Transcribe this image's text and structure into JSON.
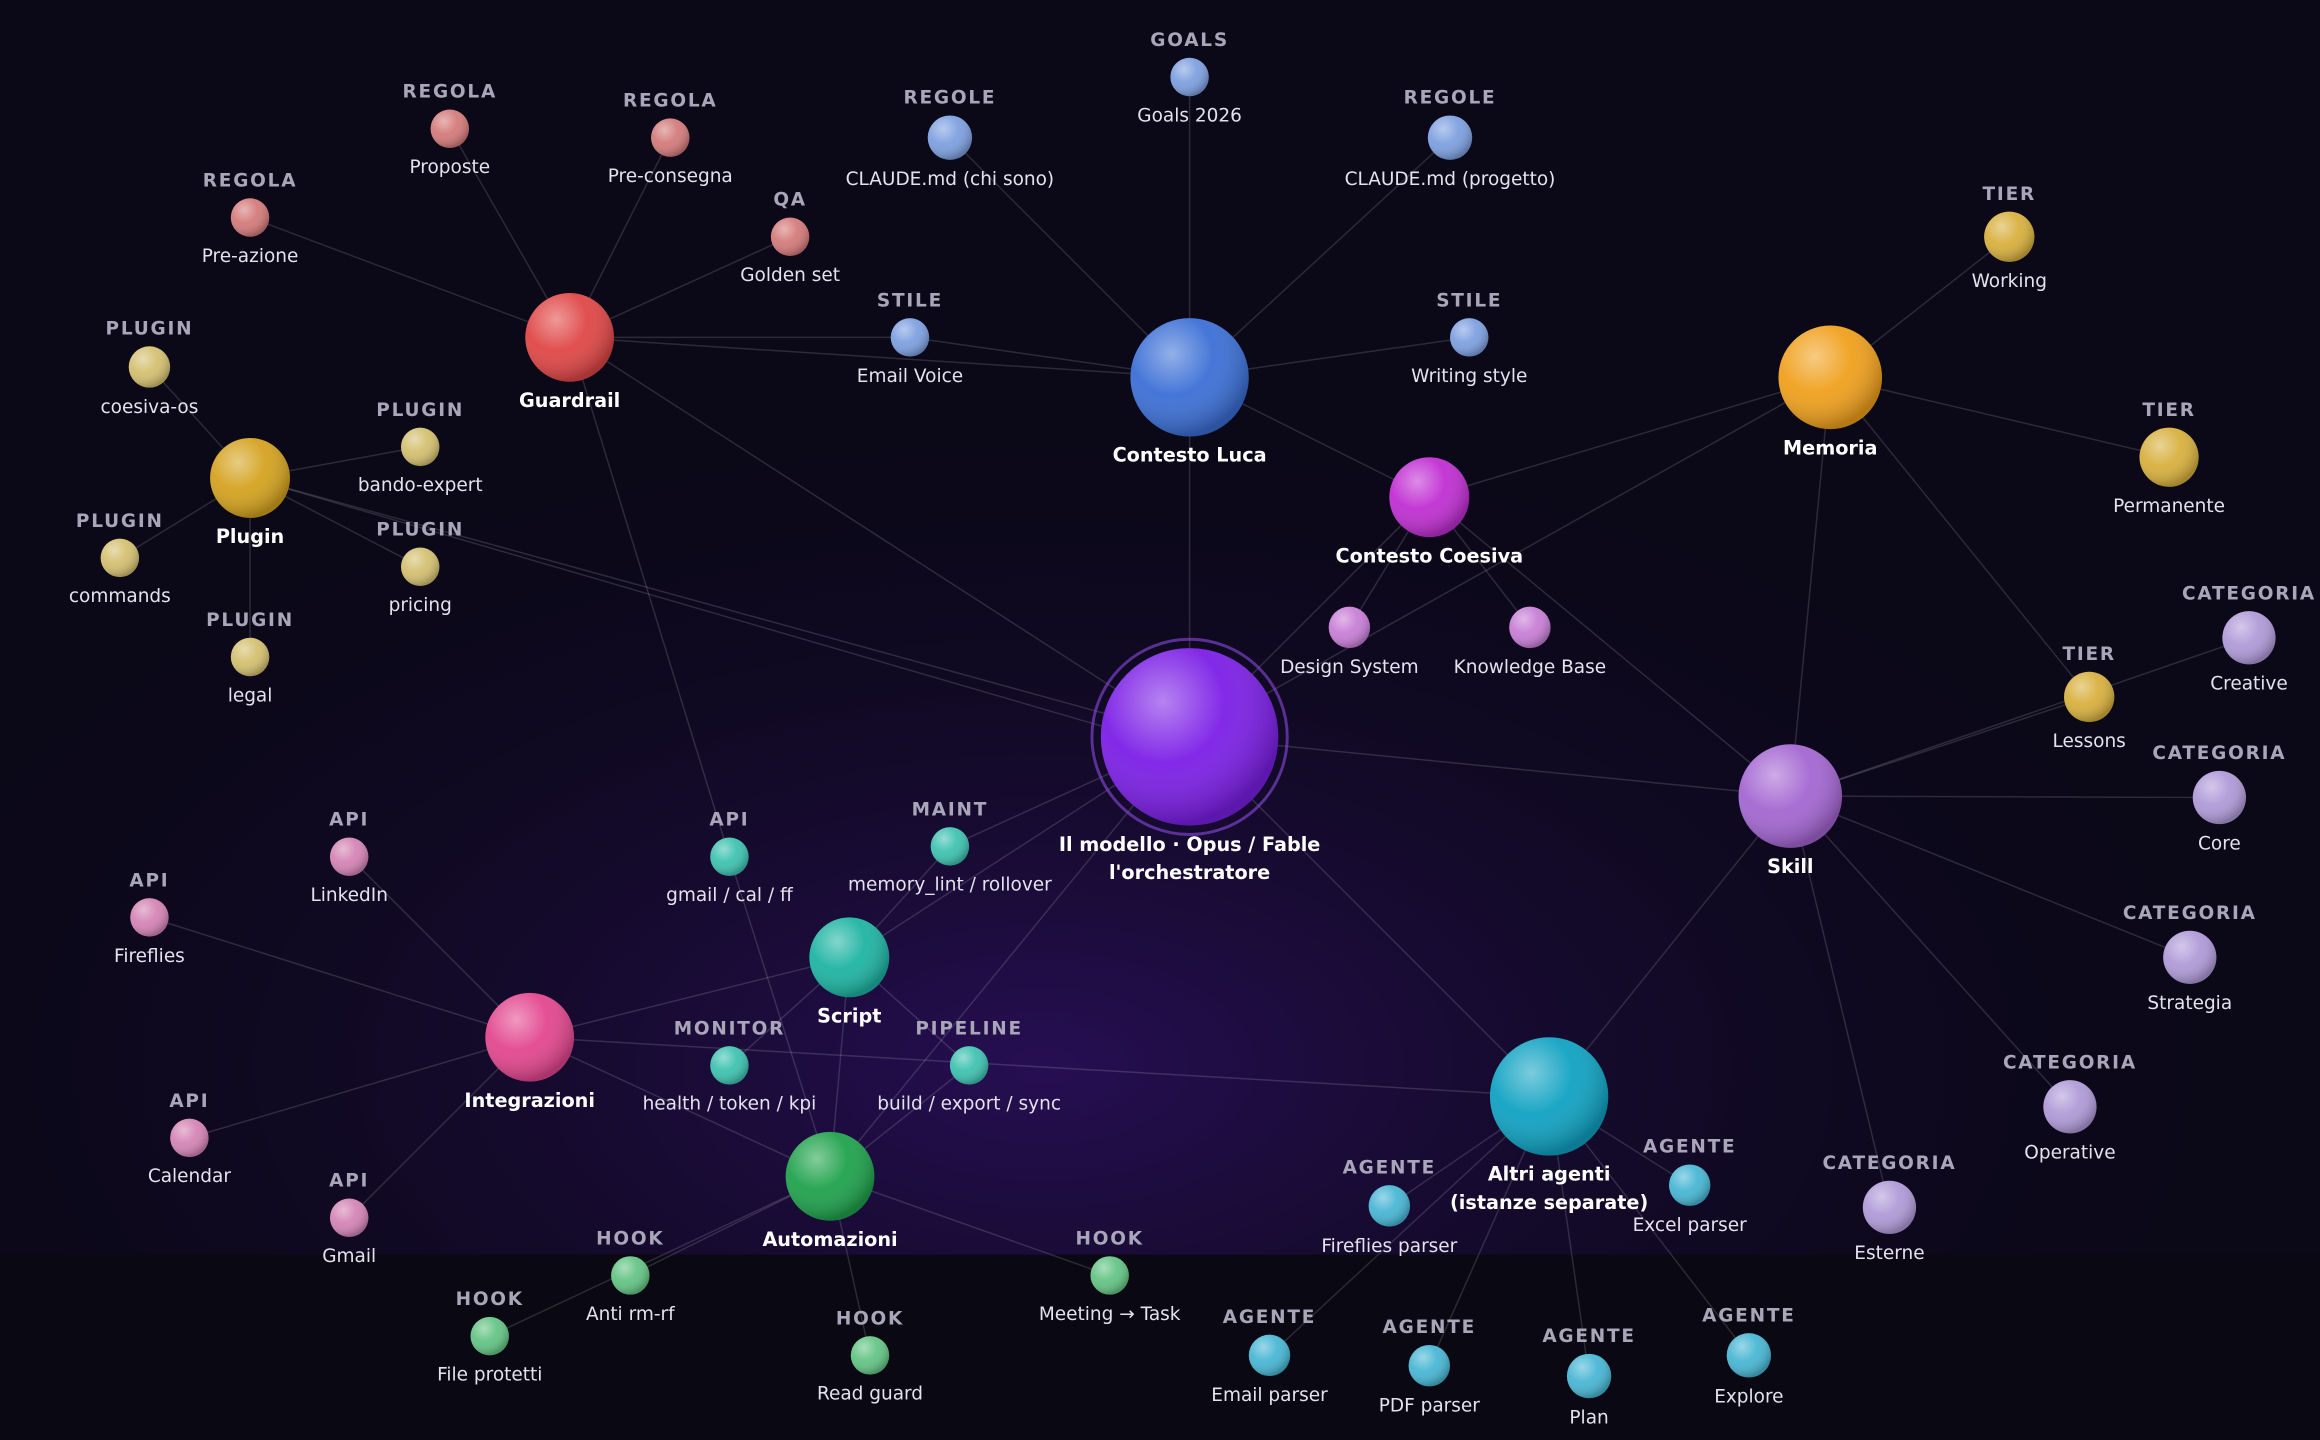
{
  "nodes": [
    {
      "lines": [
        "Il modello · Opus / Fable",
        "l'orchestratore"
      ]
    },
    {
      "lines": [
        "Contesto Luca"
      ]
    },
    {
      "lines": [
        "Guardrail"
      ]
    },
    {
      "lines": [
        "Plugin"
      ]
    },
    {
      "lines": [
        "Memoria"
      ]
    },
    {
      "lines": [
        "Contesto Coesiva"
      ]
    },
    {
      "lines": [
        "Skill"
      ]
    },
    {
      "lines": [
        "Script"
      ]
    },
    {
      "lines": [
        "Integrazioni"
      ]
    },
    {
      "lines": [
        "Automazioni"
      ]
    },
    {
      "lines": [
        "Altri agenti",
        "(istanze separate)"
      ]
    },
    {
      "kind": "GOALS",
      "lines": [
        "Goals 2026"
      ]
    },
    {
      "kind": "REGOLE",
      "lines": [
        "CLAUDE.md (chi sono)"
      ]
    },
    {
      "kind": "REGOLE",
      "lines": [
        "CLAUDE.md (progetto)"
      ]
    },
    {
      "kind": "STILE",
      "lines": [
        "Email Voice"
      ]
    },
    {
      "kind": "STILE",
      "lines": [
        "Writing style"
      ]
    },
    {
      "kind": "REGOLA",
      "lines": [
        "Proposte"
      ]
    },
    {
      "kind": "REGOLA",
      "lines": [
        "Pre-consegna"
      ]
    },
    {
      "kind": "REGOLA",
      "lines": [
        "Pre-azione"
      ]
    },
    {
      "kind": "QA",
      "lines": [
        "Golden set"
      ]
    },
    {
      "kind": "PLUGIN",
      "lines": [
        "coesiva-os"
      ]
    },
    {
      "kind": "PLUGIN",
      "lines": [
        "bando-expert"
      ]
    },
    {
      "kind": "PLUGIN",
      "lines": [
        "commands"
      ]
    },
    {
      "kind": "PLUGIN",
      "lines": [
        "pricing"
      ]
    },
    {
      "kind": "PLUGIN",
      "lines": [
        "legal"
      ]
    },
    {
      "kind": "TIER",
      "lines": [
        "Working"
      ]
    },
    {
      "kind": "TIER",
      "lines": [
        "Permanente"
      ]
    },
    {
      "kind": "TIER",
      "lines": [
        "Lessons"
      ]
    },
    {
      "lines": [
        "Design System"
      ]
    },
    {
      "lines": [
        "Knowledge Base"
      ]
    },
    {
      "kind": "CATEGORIA",
      "lines": [
        "Creative"
      ]
    },
    {
      "kind": "CATEGORIA",
      "lines": [
        "Core"
      ]
    },
    {
      "kind": "CATEGORIA",
      "lines": [
        "Strategia"
      ]
    },
    {
      "kind": "CATEGORIA",
      "lines": [
        "Operative"
      ]
    },
    {
      "kind": "CATEGORIA",
      "lines": [
        "Esterne"
      ]
    },
    {
      "kind": "API",
      "lines": [
        "LinkedIn"
      ]
    },
    {
      "kind": "API",
      "lines": [
        "Fireflies"
      ]
    },
    {
      "kind": "API",
      "lines": [
        "Calendar"
      ]
    },
    {
      "kind": "API",
      "lines": [
        "Gmail"
      ]
    },
    {
      "kind": "API",
      "lines": [
        "gmail / cal / ff"
      ]
    },
    {
      "kind": "MAINT",
      "lines": [
        "memory_lint / rollover"
      ]
    },
    {
      "kind": "MONITOR",
      "lines": [
        "health / token / kpi"
      ]
    },
    {
      "kind": "PIPELINE",
      "lines": [
        "build / export / sync"
      ]
    },
    {
      "kind": "HOOK",
      "lines": [
        "Anti rm-rf"
      ]
    },
    {
      "kind": "HOOK",
      "lines": [
        "File protetti"
      ]
    },
    {
      "kind": "HOOK",
      "lines": [
        "Read guard"
      ]
    },
    {
      "kind": "HOOK",
      "lines": [
        "Meeting → Task"
      ]
    },
    {
      "kind": "AGENTE",
      "lines": [
        "Fireflies parser"
      ]
    },
    {
      "kind": "AGENTE",
      "lines": [
        "Excel parser"
      ]
    },
    {
      "kind": "AGENTE",
      "lines": [
        "Email parser"
      ]
    },
    {
      "kind": "AGENTE",
      "lines": [
        "PDF parser"
      ]
    },
    {
      "kind": "AGENTE",
      "lines": [
        "Plan"
      ]
    },
    {
      "kind": "AGENTE",
      "lines": [
        "Explore"
      ]
    }
  ]
}
